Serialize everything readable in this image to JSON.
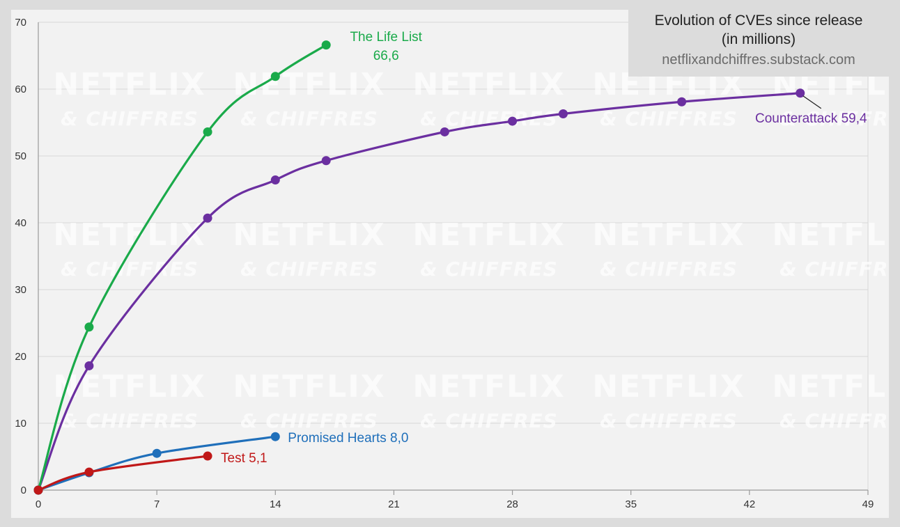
{
  "title": {
    "line1": "Evolution of CVEs since release",
    "line2": "(in millions)",
    "source": "netflixandchiffres.substack.com"
  },
  "watermark": {
    "main": "NETFLIX",
    "sub": "& CHIFFRES"
  },
  "chart_data": {
    "type": "line",
    "xlim": [
      0,
      49
    ],
    "ylim": [
      0,
      70
    ],
    "x_ticks": [
      0,
      7,
      14,
      21,
      28,
      35,
      42,
      49
    ],
    "y_ticks": [
      0,
      10,
      20,
      30,
      40,
      50,
      60,
      70
    ],
    "grid": true,
    "series": [
      {
        "name": "The Life List",
        "label_lines": [
          "The Life List",
          "66,6"
        ],
        "color": "#1aaa4a",
        "x": [
          0,
          3,
          10,
          14,
          17
        ],
        "y": [
          0,
          24.4,
          53.6,
          61.9,
          66.6
        ]
      },
      {
        "name": "Counterattack",
        "label_lines": [
          "Counterattack 59,4"
        ],
        "color": "#6b2fa0",
        "x": [
          0,
          3,
          10,
          14,
          17,
          24,
          28,
          31,
          38,
          45
        ],
        "y": [
          0,
          18.6,
          40.7,
          46.4,
          49.3,
          53.6,
          55.2,
          56.3,
          58.1,
          59.4
        ]
      },
      {
        "name": "Promised Hearts",
        "label_lines": [
          "Promised Hearts 8,0"
        ],
        "color": "#1f6fba",
        "x": [
          0,
          3,
          7,
          14
        ],
        "y": [
          0,
          2.6,
          5.5,
          8.0
        ]
      },
      {
        "name": "Test",
        "label_lines": [
          "Test 5,1"
        ],
        "color": "#c01818",
        "x": [
          0,
          3,
          10
        ],
        "y": [
          0,
          2.7,
          5.1
        ]
      }
    ]
  }
}
